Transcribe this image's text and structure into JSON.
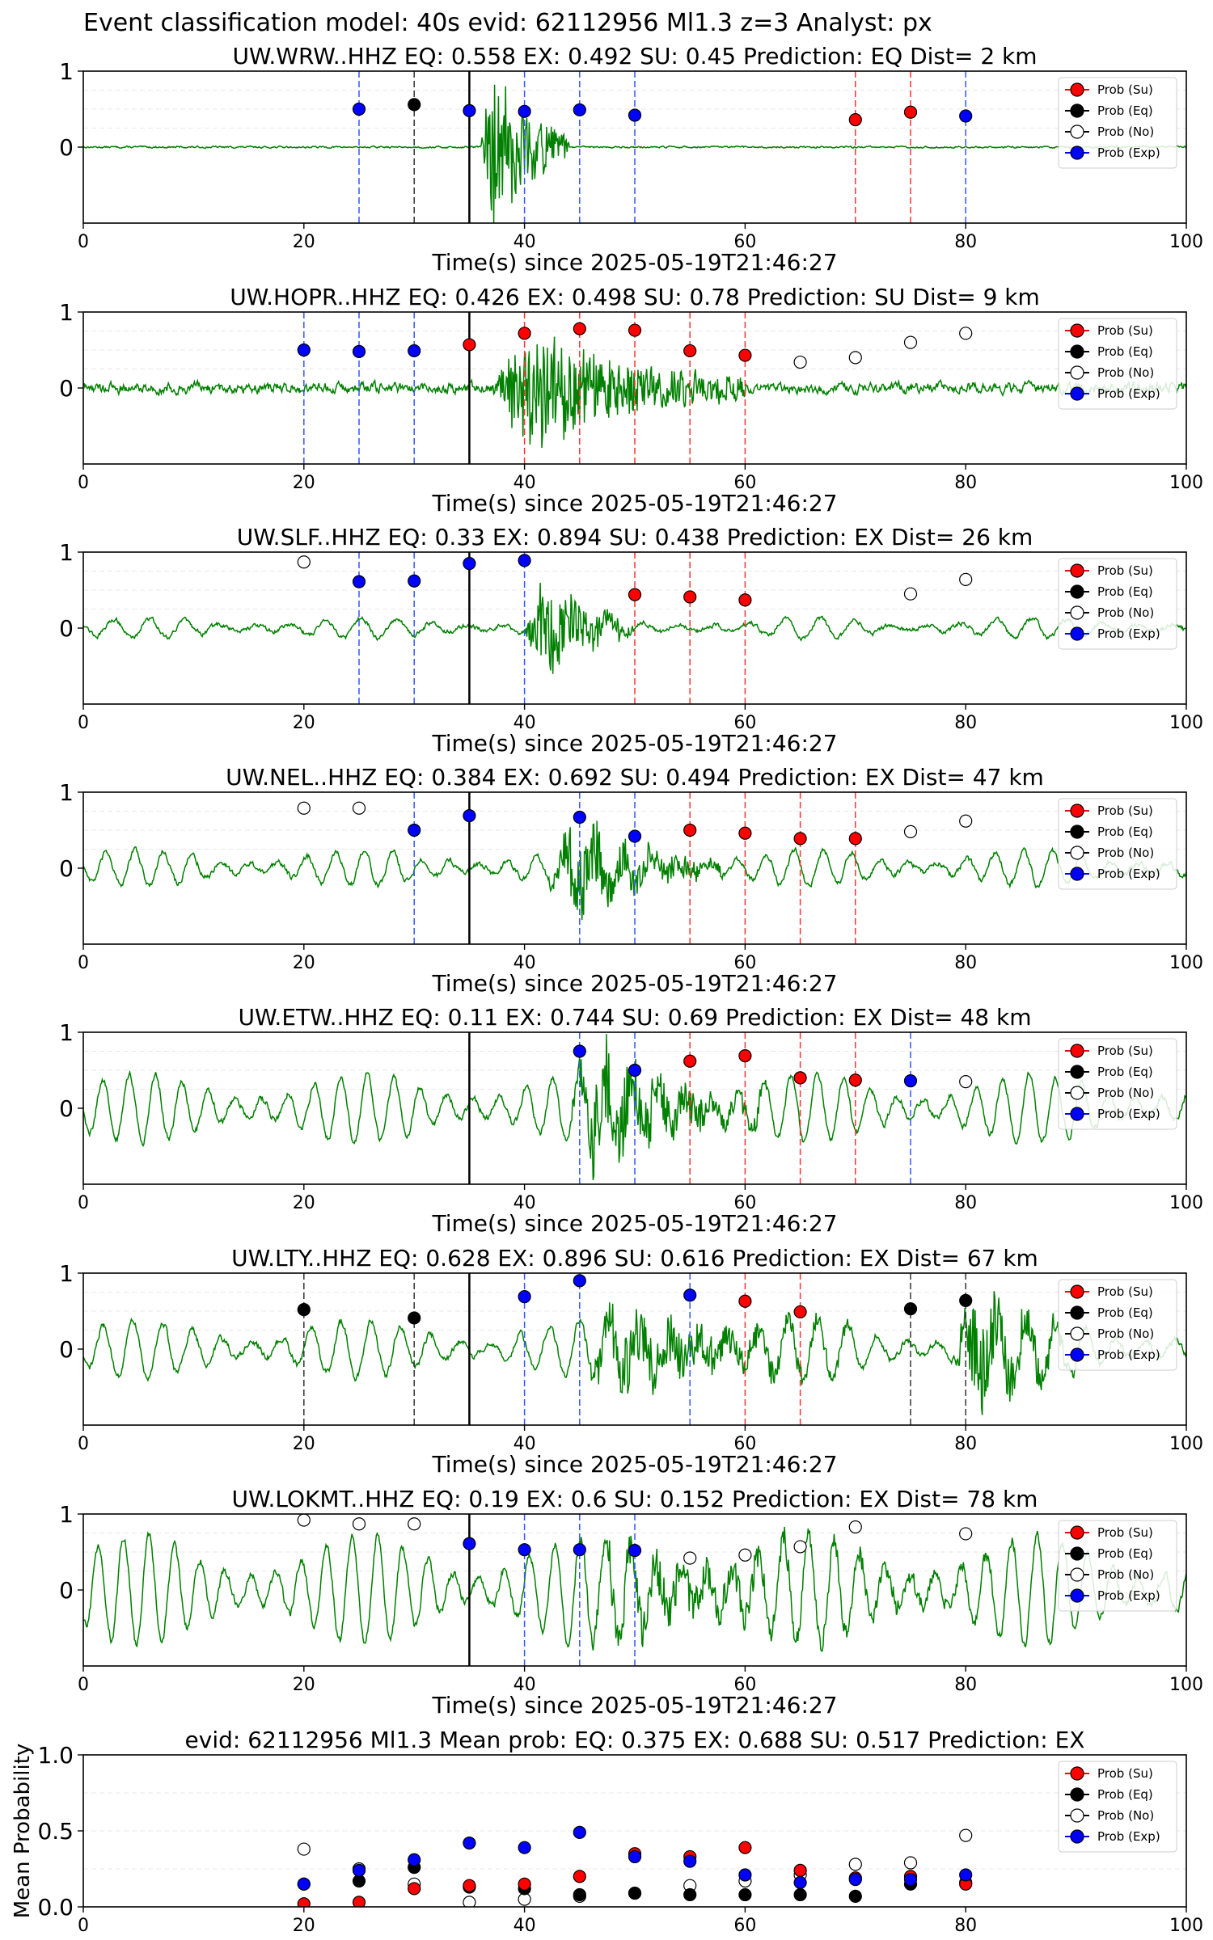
{
  "suptitle": "Event classification model: 40s evid: 62112956 Ml1.3 z=3 Analyst: px",
  "xlabel": "Time(s) since 2025-05-19T21:46:27",
  "legend": [
    "Prob (Su)",
    "Prob (Eq)",
    "Prob (No)",
    "Prob (Exp)"
  ],
  "colors": {
    "su": "#ff0000",
    "eq": "#000000",
    "no": "#ffffff",
    "exp": "#0000ff",
    "waveform": "#008000"
  },
  "chart_data": [
    {
      "type": "line",
      "title": "UW.WRW..HHZ   EQ: 0.558  EX: 0.492  SU: 0.45   Prediction: EQ    Dist= 2 km",
      "xlim": [
        0,
        100
      ],
      "ylim": [
        -1,
        1
      ],
      "xticks": [
        0,
        20,
        40,
        60,
        80,
        100
      ],
      "yticks": [
        0,
        1
      ],
      "arrival": 35,
      "wave": {
        "kind": "event",
        "noise": 0.015,
        "bg": [],
        "burst": [
          {
            "t0": 36,
            "t1": 44,
            "amp": 1.3,
            "freq": 3.5
          }
        ]
      },
      "points": [
        {
          "t": 25,
          "c": "exp",
          "p": 0.5
        },
        {
          "t": 30,
          "c": "eq",
          "p": 0.56
        },
        {
          "t": 35,
          "c": "exp",
          "p": 0.48
        },
        {
          "t": 40,
          "c": "exp",
          "p": 0.47
        },
        {
          "t": 45,
          "c": "exp",
          "p": 0.49
        },
        {
          "t": 50,
          "c": "exp",
          "p": 0.42
        },
        {
          "t": 70,
          "c": "su",
          "p": 0.36
        },
        {
          "t": 75,
          "c": "su",
          "p": 0.46
        },
        {
          "t": 80,
          "c": "exp",
          "p": 0.41
        }
      ]
    },
    {
      "type": "line",
      "title": "UW.HOPR..HHZ   EQ: 0.426  EX: 0.498  SU: 0.78   Prediction: SU    Dist= 9 km",
      "xlim": [
        0,
        100
      ],
      "ylim": [
        -1,
        1
      ],
      "xticks": [
        0,
        20,
        40,
        60,
        80,
        100
      ],
      "yticks": [
        0,
        1
      ],
      "arrival": 35,
      "wave": {
        "kind": "event",
        "noise": 0.09,
        "bg": [],
        "burst": [
          {
            "t0": 37,
            "t1": 60,
            "amp": 0.95,
            "freq": 3.2
          }
        ]
      },
      "points": [
        {
          "t": 20,
          "c": "exp",
          "p": 0.5
        },
        {
          "t": 25,
          "c": "exp",
          "p": 0.48
        },
        {
          "t": 30,
          "c": "exp",
          "p": 0.49
        },
        {
          "t": 35,
          "c": "su",
          "p": 0.57
        },
        {
          "t": 40,
          "c": "su",
          "p": 0.72
        },
        {
          "t": 45,
          "c": "su",
          "p": 0.78
        },
        {
          "t": 50,
          "c": "su",
          "p": 0.76
        },
        {
          "t": 55,
          "c": "su",
          "p": 0.49
        },
        {
          "t": 60,
          "c": "su",
          "p": 0.43
        },
        {
          "t": 65,
          "c": "no",
          "p": 0.34
        },
        {
          "t": 70,
          "c": "no",
          "p": 0.4
        },
        {
          "t": 75,
          "c": "no",
          "p": 0.6
        },
        {
          "t": 80,
          "c": "no",
          "p": 0.72
        }
      ]
    },
    {
      "type": "line",
      "title": "UW.SLF..HHZ   EQ: 0.33  EX: 0.894  SU: 0.438   Prediction: EX    Dist= 26 km",
      "xlim": [
        0,
        100
      ],
      "ylim": [
        -1,
        1
      ],
      "xticks": [
        0,
        20,
        40,
        60,
        80,
        100
      ],
      "yticks": [
        0,
        1
      ],
      "arrival": 35,
      "wave": {
        "kind": "event",
        "noise": 0.04,
        "bg": [
          {
            "period": 3.2,
            "amp": 0.11
          }
        ],
        "burst": [
          {
            "t0": 40,
            "t1": 50,
            "amp": 0.75,
            "freq": 3.0
          }
        ]
      },
      "points": [
        {
          "t": 20,
          "c": "no",
          "p": 0.87
        },
        {
          "t": 25,
          "c": "exp",
          "p": 0.61
        },
        {
          "t": 30,
          "c": "exp",
          "p": 0.62
        },
        {
          "t": 35,
          "c": "exp",
          "p": 0.85
        },
        {
          "t": 40,
          "c": "exp",
          "p": 0.89
        },
        {
          "t": 50,
          "c": "su",
          "p": 0.44
        },
        {
          "t": 55,
          "c": "su",
          "p": 0.41
        },
        {
          "t": 60,
          "c": "su",
          "p": 0.37
        },
        {
          "t": 75,
          "c": "no",
          "p": 0.45
        },
        {
          "t": 80,
          "c": "no",
          "p": 0.64
        }
      ]
    },
    {
      "type": "line",
      "title": "UW.NEL..HHZ   EQ: 0.384  EX: 0.692  SU: 0.494   Prediction: EX    Dist= 47 km",
      "xlim": [
        0,
        100
      ],
      "ylim": [
        -1,
        1
      ],
      "xticks": [
        0,
        20,
        40,
        60,
        80,
        100
      ],
      "yticks": [
        0,
        1
      ],
      "arrival": 35,
      "wave": {
        "kind": "event",
        "noise": 0.05,
        "bg": [
          {
            "period": 2.6,
            "amp": 0.2
          }
        ],
        "burst": [
          {
            "t0": 42,
            "t1": 58,
            "amp": 0.6,
            "freq": 2.8
          }
        ]
      },
      "points": [
        {
          "t": 20,
          "c": "no",
          "p": 0.79
        },
        {
          "t": 25,
          "c": "no",
          "p": 0.79
        },
        {
          "t": 30,
          "c": "exp",
          "p": 0.5
        },
        {
          "t": 35,
          "c": "exp",
          "p": 0.69
        },
        {
          "t": 45,
          "c": "exp",
          "p": 0.67
        },
        {
          "t": 50,
          "c": "exp",
          "p": 0.42
        },
        {
          "t": 55,
          "c": "su",
          "p": 0.5
        },
        {
          "t": 60,
          "c": "su",
          "p": 0.46
        },
        {
          "t": 65,
          "c": "su",
          "p": 0.39
        },
        {
          "t": 70,
          "c": "su",
          "p": 0.39
        },
        {
          "t": 75,
          "c": "no",
          "p": 0.48
        },
        {
          "t": 80,
          "c": "no",
          "p": 0.62
        }
      ]
    },
    {
      "type": "line",
      "title": "UW.ETW..HHZ   EQ: 0.11  EX: 0.744  SU: 0.69   Prediction: EX    Dist= 48 km",
      "xlim": [
        0,
        100
      ],
      "ylim": [
        -1,
        1
      ],
      "xticks": [
        0,
        20,
        40,
        60,
        80,
        100
      ],
      "yticks": [
        0,
        1
      ],
      "arrival": 35,
      "wave": {
        "kind": "event",
        "noise": 0.06,
        "bg": [
          {
            "period": 2.4,
            "amp": 0.38
          }
        ],
        "burst": [
          {
            "t0": 44,
            "t1": 62,
            "amp": 0.75,
            "freq": 2.6
          }
        ]
      },
      "points": [
        {
          "t": 45,
          "c": "exp",
          "p": 0.75
        },
        {
          "t": 50,
          "c": "exp",
          "p": 0.5
        },
        {
          "t": 55,
          "c": "su",
          "p": 0.62
        },
        {
          "t": 60,
          "c": "su",
          "p": 0.69
        },
        {
          "t": 65,
          "c": "su",
          "p": 0.4
        },
        {
          "t": 70,
          "c": "su",
          "p": 0.37
        },
        {
          "t": 75,
          "c": "exp",
          "p": 0.36
        },
        {
          "t": 80,
          "c": "no",
          "p": 0.35
        }
      ]
    },
    {
      "type": "line",
      "title": "UW.LTY..HHZ   EQ: 0.628  EX: 0.896  SU: 0.616   Prediction: EX    Dist= 67 km",
      "xlim": [
        0,
        100
      ],
      "ylim": [
        -1,
        1
      ],
      "xticks": [
        0,
        20,
        40,
        60,
        80,
        100
      ],
      "yticks": [
        0,
        1
      ],
      "arrival": 35,
      "wave": {
        "kind": "event",
        "noise": 0.06,
        "bg": [
          {
            "period": 2.7,
            "amp": 0.32
          }
        ],
        "burst": [
          {
            "t0": 45,
            "t1": 70,
            "amp": 0.55,
            "freq": 2.4
          },
          {
            "t0": 79,
            "t1": 90,
            "amp": 0.85,
            "freq": 2.6
          }
        ]
      },
      "points": [
        {
          "t": 20,
          "c": "eq",
          "p": 0.52
        },
        {
          "t": 30,
          "c": "eq",
          "p": 0.41
        },
        {
          "t": 40,
          "c": "exp",
          "p": 0.69
        },
        {
          "t": 45,
          "c": "exp",
          "p": 0.9
        },
        {
          "t": 55,
          "c": "exp",
          "p": 0.71
        },
        {
          "t": 60,
          "c": "su",
          "p": 0.63
        },
        {
          "t": 65,
          "c": "su",
          "p": 0.49
        },
        {
          "t": 75,
          "c": "eq",
          "p": 0.53
        },
        {
          "t": 80,
          "c": "eq",
          "p": 0.64
        }
      ]
    },
    {
      "type": "line",
      "title": "UW.LOKMT..HHZ   EQ: 0.19  EX: 0.6  SU: 0.152   Prediction: EX    Dist= 78 km",
      "xlim": [
        0,
        100
      ],
      "ylim": [
        -1,
        1
      ],
      "xticks": [
        0,
        20,
        40,
        60,
        80,
        100
      ],
      "yticks": [
        0,
        1
      ],
      "arrival": 35,
      "wave": {
        "kind": "event",
        "noise": 0.08,
        "bg": [
          {
            "period": 2.3,
            "amp": 0.6
          }
        ],
        "burst": [
          {
            "t0": 44,
            "t1": 85,
            "amp": 0.35,
            "freq": 2.2
          }
        ]
      },
      "points": [
        {
          "t": 20,
          "c": "no",
          "p": 0.92
        },
        {
          "t": 25,
          "c": "no",
          "p": 0.87
        },
        {
          "t": 30,
          "c": "no",
          "p": 0.87
        },
        {
          "t": 35,
          "c": "exp",
          "p": 0.61
        },
        {
          "t": 40,
          "c": "exp",
          "p": 0.53
        },
        {
          "t": 45,
          "c": "exp",
          "p": 0.53
        },
        {
          "t": 50,
          "c": "exp",
          "p": 0.52
        },
        {
          "t": 55,
          "c": "no",
          "p": 0.42
        },
        {
          "t": 60,
          "c": "no",
          "p": 0.46
        },
        {
          "t": 65,
          "c": "no",
          "p": 0.57
        },
        {
          "t": 70,
          "c": "no",
          "p": 0.83
        },
        {
          "t": 80,
          "c": "no",
          "p": 0.74
        }
      ]
    },
    {
      "type": "scatter",
      "title": "evid: 62112956  Ml1.3   Mean prob:   EQ: 0.375  EX: 0.688  SU: 0.517   Prediction: EX",
      "ylabel": "Mean Probability",
      "xlim": [
        0,
        100
      ],
      "ylim": [
        0,
        1
      ],
      "xticks": [
        0,
        20,
        40,
        60,
        80,
        100
      ],
      "yticks": [
        0.0,
        0.5,
        1.0
      ],
      "ytick_labels": [
        "0.0",
        "0.5",
        "1.0"
      ],
      "x": [
        20,
        25,
        30,
        35,
        40,
        45,
        50,
        55,
        60,
        65,
        70,
        75,
        80
      ],
      "series": [
        {
          "key": "no",
          "values": [
            0.38,
            0.25,
            0.15,
            0.03,
            0.05,
            0.07,
            0.09,
            0.14,
            0.17,
            0.21,
            0.28,
            0.29,
            0.47
          ]
        },
        {
          "key": "eq",
          "values": [
            0.15,
            0.17,
            0.26,
            0.13,
            0.12,
            0.08,
            0.09,
            0.08,
            0.08,
            0.08,
            0.07,
            0.15,
            0.16
          ]
        },
        {
          "key": "su",
          "values": [
            0.02,
            0.03,
            0.12,
            0.14,
            0.15,
            0.2,
            0.35,
            0.33,
            0.39,
            0.24,
            0.19,
            0.2,
            0.15
          ]
        },
        {
          "key": "exp",
          "values": [
            0.15,
            0.24,
            0.31,
            0.42,
            0.39,
            0.49,
            0.33,
            0.3,
            0.21,
            0.16,
            0.18,
            0.18,
            0.21
          ]
        }
      ]
    }
  ]
}
